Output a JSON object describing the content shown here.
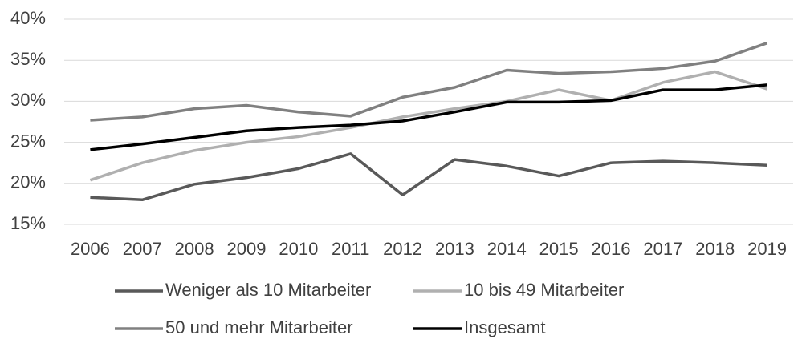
{
  "chart_data": {
    "type": "line",
    "categories": [
      "2006",
      "2007",
      "2008",
      "2009",
      "2010",
      "2011",
      "2012",
      "2013",
      "2014",
      "2015",
      "2016",
      "2017",
      "2018",
      "2019"
    ],
    "series": [
      {
        "name": "Weniger als 10 Mitarbeiter",
        "color": "#595959",
        "values": [
          18.3,
          18.0,
          19.9,
          20.7,
          21.8,
          23.6,
          18.6,
          22.9,
          22.1,
          20.9,
          22.5,
          22.7,
          22.5,
          22.2
        ]
      },
      {
        "name": "10 bis 49 Mitarbeiter",
        "color": "#b0b0b0",
        "values": [
          20.4,
          22.5,
          24.0,
          25.0,
          25.7,
          26.8,
          28.1,
          29.1,
          30.0,
          31.4,
          30.1,
          32.3,
          33.6,
          31.5
        ]
      },
      {
        "name": "50 und mehr Mitarbeiter",
        "color": "#808080",
        "values": [
          27.7,
          28.1,
          29.1,
          29.5,
          28.7,
          28.2,
          30.5,
          31.7,
          33.8,
          33.4,
          33.6,
          34.0,
          34.9,
          37.1
        ]
      },
      {
        "name": "Insgesamt",
        "color": "#000000",
        "values": [
          24.1,
          24.8,
          25.6,
          26.4,
          26.8,
          27.1,
          27.6,
          28.7,
          29.9,
          29.9,
          30.1,
          31.4,
          31.4,
          32.0
        ]
      }
    ],
    "ylim": [
      15,
      40
    ],
    "yticks": [
      {
        "value": 15,
        "label": "15%"
      },
      {
        "value": 20,
        "label": "20%"
      },
      {
        "value": 25,
        "label": "25%"
      },
      {
        "value": 30,
        "label": "30%"
      },
      {
        "value": 35,
        "label": "35%"
      },
      {
        "value": 40,
        "label": "40%"
      }
    ],
    "grid": true
  }
}
